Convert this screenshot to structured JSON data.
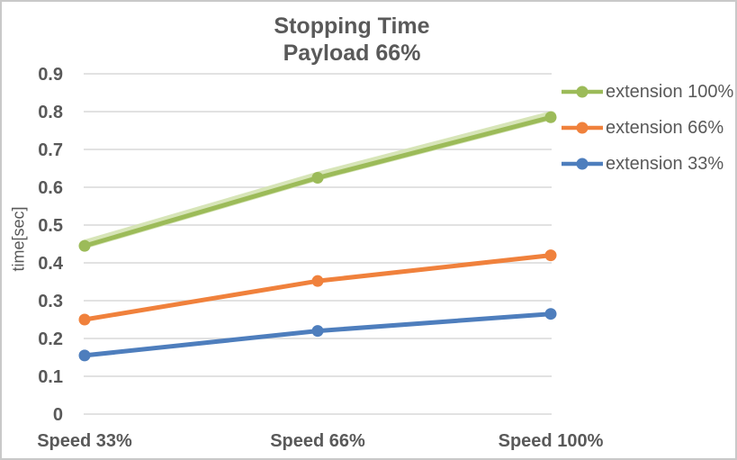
{
  "chart_data": {
    "type": "line",
    "title": "Stopping Time",
    "subtitle": "Payload 66%",
    "ylabel": "time[sec]",
    "xlabel": "",
    "categories": [
      "Speed 33%",
      "Speed 66%",
      "Speed 100%"
    ],
    "series": [
      {
        "name": "extension 100%",
        "color": "#9CBB59",
        "glow": "#D3E2B0",
        "values": [
          0.445,
          0.625,
          0.785
        ]
      },
      {
        "name": "extension 66%",
        "color": "#F0813C",
        "values": [
          0.25,
          0.352,
          0.42
        ]
      },
      {
        "name": "extension 33%",
        "color": "#4E7EBD",
        "values": [
          0.155,
          0.22,
          0.265
        ]
      }
    ],
    "y_ticks": [
      "0.9",
      "0.8",
      "0.7",
      "0.6",
      "0.5",
      "0.4",
      "0.3",
      "0.2",
      "0.1",
      "0"
    ],
    "ylim": [
      0,
      0.9
    ],
    "grid": true,
    "legend_position": "right"
  },
  "colors": {
    "text": "#595959",
    "gridline": "#D9D9D9",
    "frame_border": "#C9C9C9",
    "background": "#FFFFFF"
  }
}
